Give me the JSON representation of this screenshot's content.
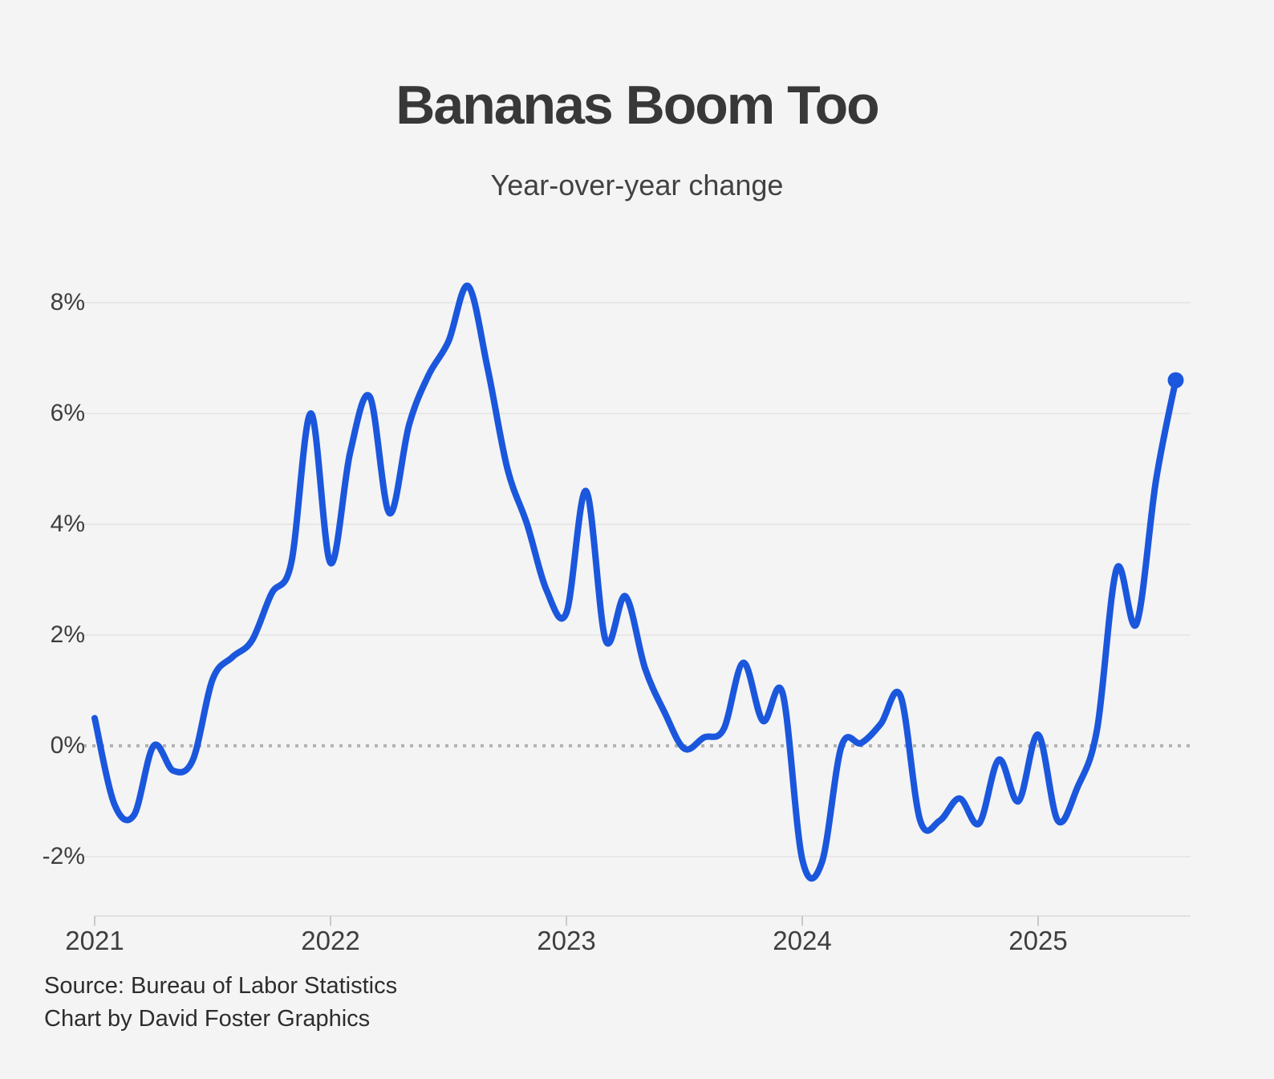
{
  "header": {
    "title": "Bananas Boom Too",
    "subtitle": "Year-over-year change"
  },
  "footer": {
    "source": "Source: Bureau of Labor Statistics",
    "credit": "Chart by David Foster Graphics"
  },
  "colors": {
    "background": "#f4f4f4",
    "line": "#1b57dd",
    "gridline": "#e7e7e7",
    "axis_line": "#e0e0e0",
    "tick_mark": "#c8c8c8",
    "zero_line": "#b4b4b4",
    "title_text": "#383838",
    "label_text": "#3e3e3e"
  },
  "chart_data": {
    "type": "line",
    "title": "Bananas Boom Too",
    "subtitle": "Year-over-year change",
    "unit": "percent YoY",
    "grid": "horizontal",
    "zero_line": "dotted",
    "legend": "none",
    "end_dot": true,
    "ylim": [
      -2.9,
      8.8
    ],
    "y_ticks": [
      "8%",
      "6%",
      "4%",
      "2%",
      "0%",
      "-2%"
    ],
    "y_tick_values": [
      8,
      6,
      4,
      2,
      0,
      -2
    ],
    "x_ticks": [
      "2021",
      "2022",
      "2023",
      "2024",
      "2025"
    ],
    "x": [
      "2021-01",
      "2021-02",
      "2021-03",
      "2021-04",
      "2021-05",
      "2021-06",
      "2021-07",
      "2021-08",
      "2021-09",
      "2021-10",
      "2021-11",
      "2021-12",
      "2022-01",
      "2022-02",
      "2022-03",
      "2022-04",
      "2022-05",
      "2022-06",
      "2022-07",
      "2022-08",
      "2022-09",
      "2022-10",
      "2022-11",
      "2022-12",
      "2023-01",
      "2023-02",
      "2023-03",
      "2023-04",
      "2023-05",
      "2023-06",
      "2023-07",
      "2023-08",
      "2023-09",
      "2023-10",
      "2023-11",
      "2023-12",
      "2024-01",
      "2024-02",
      "2024-03",
      "2024-04",
      "2024-05",
      "2024-06",
      "2024-07",
      "2024-08",
      "2024-09",
      "2024-10",
      "2024-11",
      "2024-12",
      "2025-01",
      "2025-02",
      "2025-03",
      "2025-04",
      "2025-05",
      "2025-06",
      "2025-07",
      "2025-08"
    ],
    "values": [
      0.5,
      -1.05,
      -1.25,
      0.0,
      -0.45,
      -0.25,
      1.2,
      1.6,
      1.9,
      2.75,
      3.3,
      6.0,
      3.3,
      5.3,
      6.3,
      4.2,
      5.8,
      6.7,
      7.3,
      8.3,
      6.8,
      5.0,
      4.0,
      2.8,
      2.4,
      4.6,
      1.9,
      2.7,
      1.4,
      0.6,
      -0.05,
      0.15,
      0.3,
      1.5,
      0.45,
      0.95,
      -2.05,
      -2.1,
      0.0,
      0.05,
      0.4,
      0.9,
      -1.35,
      -1.35,
      -0.95,
      -1.4,
      -0.25,
      -1.0,
      0.2,
      -1.35,
      -0.75,
      0.3,
      3.2,
      2.2,
      4.8,
      6.6
    ],
    "last_point_value": 6.6,
    "last_point_label": "2025-08"
  }
}
